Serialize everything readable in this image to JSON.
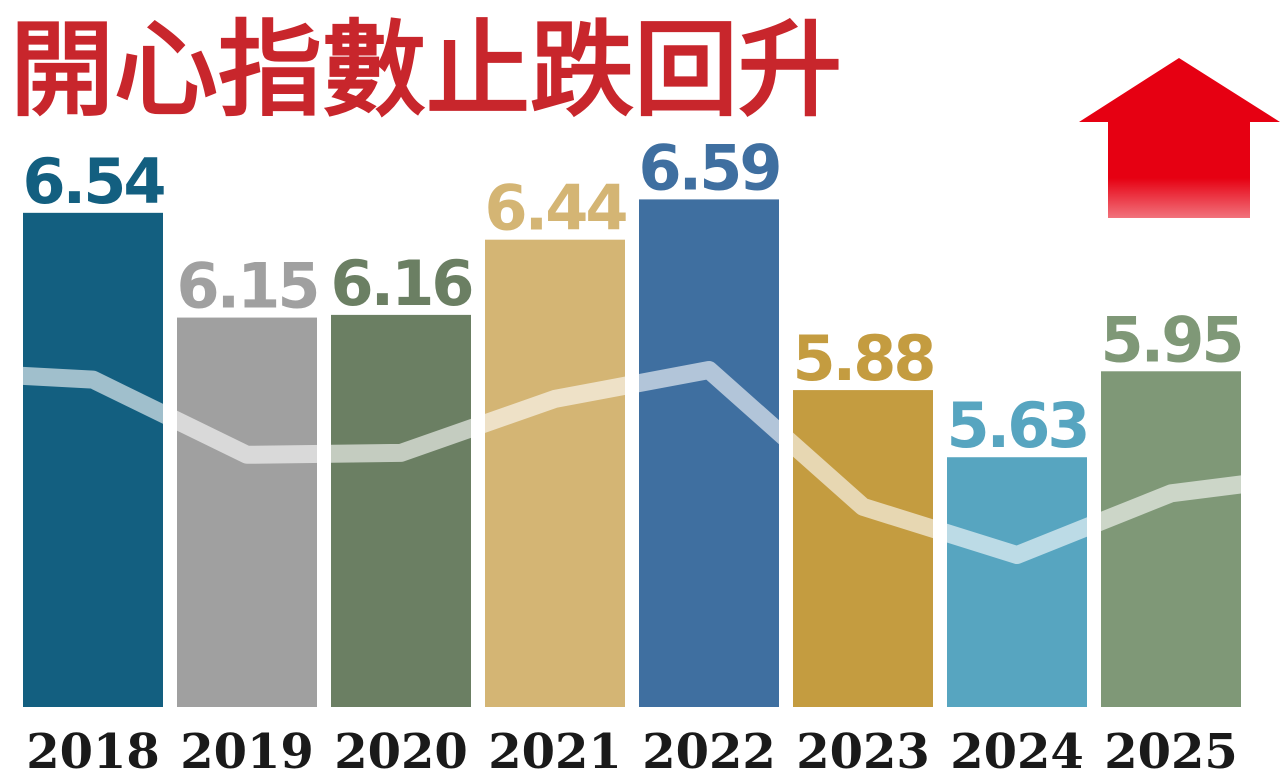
{
  "chart_data": {
    "type": "bar",
    "title": "開心指數止跌回升",
    "categories": [
      "2018",
      "2019",
      "2020",
      "2021",
      "2022",
      "2023",
      "2024",
      "2025"
    ],
    "values": [
      6.54,
      6.15,
      6.16,
      6.44,
      6.59,
      5.88,
      5.63,
      5.95
    ],
    "value_labels": [
      "6.54",
      "6.15",
      "6.16",
      "6.44",
      "6.59",
      "5.88",
      "5.63",
      "5.95"
    ],
    "bar_colors": [
      "#135f80",
      "#a0a0a0",
      "#6b7f63",
      "#d4b574",
      "#3f6fa0",
      "#c49c40",
      "#57a5c0",
      "#7f9877"
    ],
    "label_colors": [
      "#135f80",
      "#a0a0a0",
      "#6b7f63",
      "#d4b574",
      "#3f6fa0",
      "#c49c40",
      "#57a5c0",
      "#7f9877"
    ],
    "trend_line": true,
    "trend_line_color": "#ffffff",
    "title_color": "#c8262c",
    "arrow_color": "#e60012",
    "arrow_direction": "up",
    "ylim": [
      4.7,
      6.8
    ],
    "grid": false,
    "legend": "none",
    "xlabel": "",
    "ylabel": ""
  }
}
